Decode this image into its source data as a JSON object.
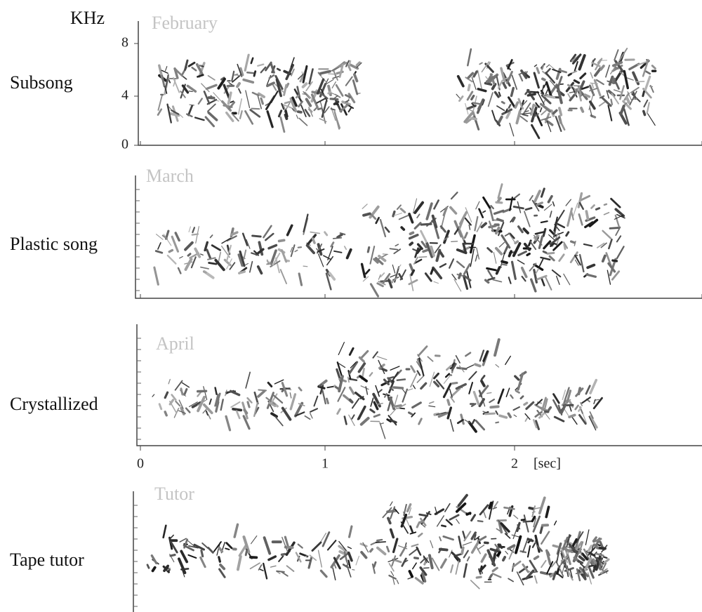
{
  "y_axis": {
    "unit": "KHz",
    "ticks": [
      "8",
      "4",
      "0"
    ]
  },
  "x_axis": {
    "ticks": [
      "0",
      "1",
      "2"
    ],
    "unit": "[sec]"
  },
  "panels": [
    {
      "label": "Subsong",
      "month": "February"
    },
    {
      "label": "Plastic song",
      "month": "March"
    },
    {
      "label": "Crystallized",
      "month": "April"
    },
    {
      "label": "Tape tutor",
      "month": "Tutor"
    }
  ]
}
